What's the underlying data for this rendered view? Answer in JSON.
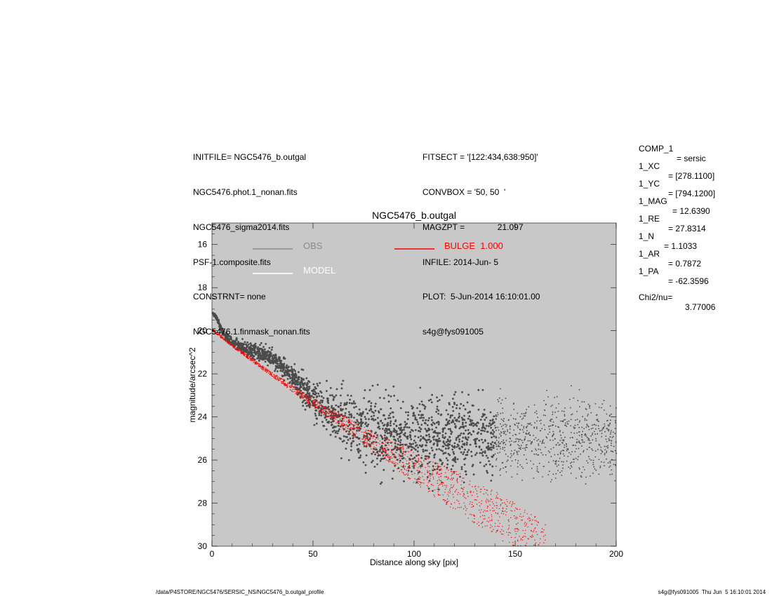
{
  "header": {
    "left": [
      "INITFILE= NGC5476_b.outgal",
      "NGC5476.phot.1_nonan.fits",
      "NGC5476_sigma2014.fits",
      "PSF-1.composite.fits",
      "CONSTRNT= none",
      "NGC5476.1.finmask_nonan.fits"
    ],
    "middle": [
      "FITSECT = '[122:434,638:950]'",
      "CONVBOX = '50, 50  '",
      "MAGZPT =              21.097",
      "INFILE: 2014-Jun- 5",
      "PLOT:  5-Jun-2014 16:10:01.00",
      "s4g@fys091005"
    ]
  },
  "components": [
    {
      "key": "COMP_1",
      "value": "= sersic"
    },
    {
      "key": "1_XC",
      "value": "= [278.1100]"
    },
    {
      "key": "1_YC",
      "value": "= [794.1200]"
    },
    {
      "key": "1_MAG",
      "value": "= 12.6390"
    },
    {
      "key": "1_RE",
      "value": "= 27.8314"
    },
    {
      "key": "1_N",
      "value": "= 1.1033"
    },
    {
      "key": "1_AR",
      "value": "= 0.7872"
    },
    {
      "key": "1_PA",
      "value": "= -62.3596"
    }
  ],
  "chi2": {
    "label": "Chi2/nu=",
    "value": "3.77006"
  },
  "footer": {
    "left": "/data/P4STORE/NGC5476/SERSIC_NS/NGC5476_b.outgal_profile",
    "right": "s4g@fys091005  Thu Jun  5 16:10:01 2014"
  },
  "chart_data": {
    "type": "scatter",
    "title": "NGC5476_b.outgal",
    "xlabel": "Distance along sky [pix]",
    "ylabel": "magnitude/arcsec^2",
    "xlim": [
      0,
      200
    ],
    "ylim": [
      30,
      15
    ],
    "xticks": [
      0,
      50,
      100,
      150,
      200
    ],
    "yticks": [
      16,
      18,
      20,
      22,
      24,
      26,
      28,
      30
    ],
    "background": "#c8c8c8",
    "legend": [
      {
        "name": "OBS",
        "color": "#8a8a8a"
      },
      {
        "name": "BULGE  1.000",
        "color": "#ff0000"
      },
      {
        "name": "MODEL",
        "color": "#ffffff"
      }
    ],
    "series": [
      {
        "name": "OBS",
        "color": "#4a4a4a",
        "x": [
          0.5,
          2,
          3,
          4,
          5,
          6,
          8,
          10,
          12,
          15,
          18,
          20,
          22,
          25,
          27,
          30,
          33,
          35,
          38,
          40,
          45,
          50,
          55,
          60,
          65,
          70,
          75,
          80,
          85,
          90,
          95,
          100,
          110,
          120,
          130,
          140,
          150,
          160,
          170,
          180,
          190,
          200
        ],
        "y": [
          19.2,
          19.35,
          19.55,
          19.8,
          20.0,
          20.15,
          20.35,
          20.5,
          20.62,
          20.78,
          20.88,
          20.9,
          21.0,
          21.05,
          21.15,
          21.35,
          21.55,
          21.7,
          21.95,
          22.15,
          22.7,
          23.2,
          23.6,
          23.95,
          24.2,
          24.45,
          24.6,
          24.7,
          24.8,
          24.85,
          24.9,
          24.9,
          24.95,
          24.95,
          25.0,
          25.0,
          25.0,
          25.0,
          25.05,
          25.05,
          25.1,
          25.1
        ],
        "spread": [
          0.05,
          0.08,
          0.1,
          0.1,
          0.12,
          0.15,
          0.2,
          0.2,
          0.22,
          0.25,
          0.3,
          0.35,
          0.35,
          0.35,
          0.35,
          0.35,
          0.35,
          0.35,
          0.35,
          0.4,
          0.6,
          0.7,
          0.85,
          1.0,
          1.2,
          1.4,
          1.5,
          1.55,
          1.55,
          1.6,
          1.6,
          1.6,
          1.6,
          1.6,
          1.6,
          1.6,
          1.6,
          1.6,
          1.6,
          1.6,
          1.6,
          1.6
        ]
      },
      {
        "name": "BULGE  1.000",
        "color": "#ff0000",
        "x": [
          0,
          10,
          20,
          30,
          40,
          50,
          60,
          70,
          80,
          90,
          100,
          110,
          120,
          130,
          140,
          150,
          160,
          165
        ],
        "y_upper": [
          19.9,
          20.6,
          21.3,
          21.95,
          22.55,
          23.15,
          23.7,
          24.2,
          24.7,
          25.15,
          25.6,
          26.05,
          26.5,
          26.95,
          27.45,
          28.0,
          28.55,
          28.85
        ],
        "y_lower": [
          20.0,
          20.75,
          21.45,
          22.15,
          22.85,
          23.55,
          24.25,
          24.95,
          25.65,
          26.35,
          27.05,
          27.7,
          28.3,
          28.95,
          29.55,
          30.15,
          30.75,
          31.0
        ]
      }
    ]
  }
}
